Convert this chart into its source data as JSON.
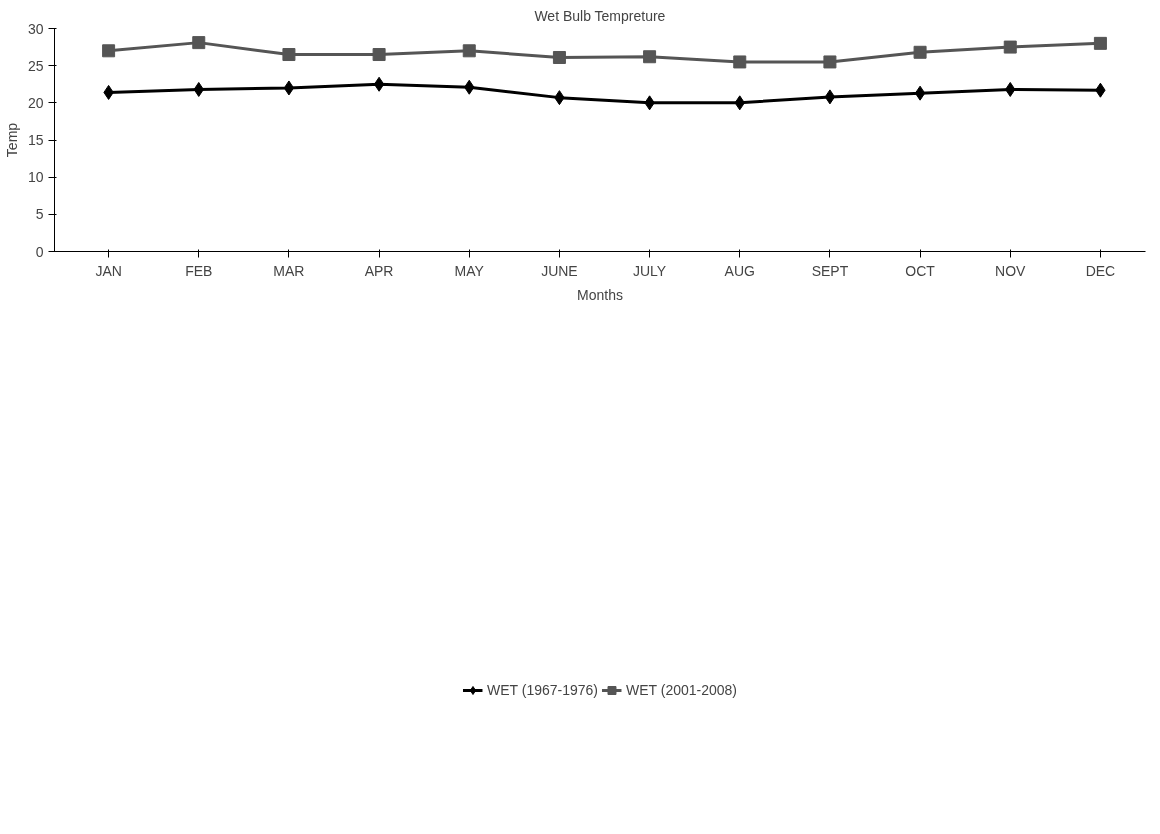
{
  "chart_data": {
    "type": "line",
    "title": "Wet Bulb Tempreture",
    "xlabel": "Months",
    "ylabel": "Temp",
    "categories": [
      "JAN",
      "FEB",
      "MAR",
      "APR",
      "MAY",
      "JUNE",
      "JULY",
      "AUG",
      "SEPT",
      "OCT",
      "NOV",
      "DEC"
    ],
    "series": [
      {
        "name": "WET (1967-1976)",
        "color": "#000000",
        "marker": "diamond",
        "values": [
          21.4,
          21.8,
          22.0,
          22.5,
          22.1,
          20.7,
          20.0,
          20.0,
          20.8,
          21.3,
          21.8,
          21.7
        ]
      },
      {
        "name": "WET (2001-2008)",
        "color": "#555555",
        "marker": "square",
        "values": [
          27.0,
          28.1,
          26.5,
          26.5,
          27.0,
          26.1,
          26.2,
          25.5,
          25.5,
          26.8,
          27.5,
          28.0
        ]
      }
    ],
    "ylim": [
      0,
      30
    ],
    "yticks": [
      0,
      5,
      10,
      15,
      20,
      25,
      30
    ],
    "grid": false,
    "legend": "bottom",
    "line_style": "solid"
  }
}
